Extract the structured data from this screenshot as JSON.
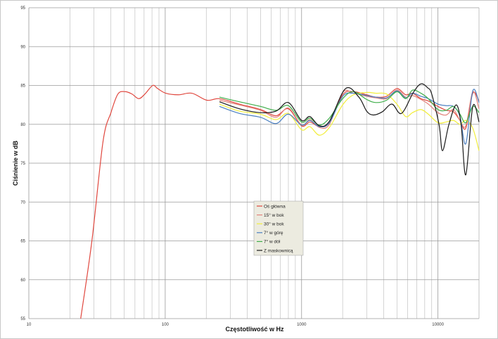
{
  "chart_data": {
    "type": "line",
    "title": "",
    "xlabel": "Częstotliwość w Hz",
    "ylabel": "Ciśnienie w dB",
    "xscale": "log",
    "xlim": [
      10,
      20000
    ],
    "ylim": [
      55,
      95
    ],
    "xticks": [
      10,
      100,
      1000,
      10000
    ],
    "xtick_labels": [
      "10",
      "100",
      "1000",
      "10000"
    ],
    "yticks": [
      55,
      60,
      65,
      70,
      75,
      80,
      85,
      90,
      95
    ],
    "ytick_labels": [
      "55",
      "60",
      "65",
      "70",
      "75",
      "80",
      "85",
      "90",
      "95"
    ],
    "grid": true,
    "legend_position": "center",
    "series": [
      {
        "name": "Oś główna",
        "color": "#e0473e",
        "x": [
          24,
          29,
          35,
          40,
          45,
          51,
          57,
          64,
          71,
          81,
          88,
          101,
          125,
          157,
          202,
          250,
          350,
          500,
          650,
          800,
          1000,
          1150,
          1350,
          1600,
          2000,
          2400,
          3000,
          3500,
          4200,
          5000,
          5800,
          6500,
          7500,
          8500,
          10000,
          11500,
          13000,
          14500,
          16000,
          18000,
          20000
        ],
        "y": [
          55,
          65,
          77.8,
          81.5,
          83.9,
          84.2,
          83.9,
          83.3,
          83.9,
          85.0,
          84.6,
          84.0,
          83.8,
          84.0,
          83.1,
          83.3,
          82.6,
          81.9,
          81.1,
          82.0,
          79.8,
          80.3,
          79.7,
          80.2,
          83.8,
          84.2,
          83.8,
          83.5,
          83.6,
          84.6,
          83.8,
          84.0,
          83.3,
          83.0,
          82.3,
          81.8,
          81.6,
          80.5,
          79.5,
          84.0,
          83.0
        ]
      },
      {
        "name": "15° w bok",
        "color": "#e3837c",
        "x": [
          250,
          350,
          500,
          650,
          800,
          1000,
          1150,
          1350,
          1600,
          2000,
          2400,
          3000,
          3500,
          4200,
          5000,
          5800,
          6500,
          7500,
          8500,
          10000,
          11500,
          13000,
          14500,
          16000,
          18000,
          20000
        ],
        "y": [
          83.1,
          82.5,
          81.8,
          80.9,
          82.1,
          79.9,
          80.6,
          79.6,
          80.0,
          84.1,
          84.0,
          83.6,
          83.4,
          83.3,
          84.4,
          83.5,
          83.7,
          83.2,
          82.6,
          81.5,
          81.2,
          81.9,
          80.5,
          79.8,
          84.2,
          82.0
        ]
      },
      {
        "name": "30° w bok",
        "color": "#f2ee3c",
        "x": [
          250,
          350,
          500,
          650,
          800,
          1000,
          1150,
          1350,
          1600,
          2000,
          2400,
          3000,
          3500,
          4200,
          5000,
          5800,
          6500,
          7500,
          8500,
          10000,
          11500,
          13000,
          14500,
          16000,
          18000,
          20000
        ],
        "y": [
          82.6,
          81.7,
          81.3,
          80.6,
          81.4,
          79.3,
          79.7,
          78.6,
          79.6,
          82.5,
          83.8,
          84.1,
          84.0,
          83.9,
          82.6,
          81.0,
          81.5,
          81.9,
          81.3,
          80.2,
          80.3,
          80.5,
          80.0,
          80.5,
          79.5,
          76.6
        ]
      },
      {
        "name": "7° w górę",
        "color": "#4a7fc1",
        "x": [
          250,
          350,
          500,
          650,
          800,
          1000,
          1150,
          1350,
          1600,
          2000,
          2400,
          3000,
          3500,
          4200,
          5000,
          5800,
          6500,
          7500,
          8500,
          10000,
          11500,
          13000,
          14500,
          16000,
          18000,
          20000
        ],
        "y": [
          82.3,
          81.4,
          80.9,
          80.1,
          81.3,
          79.9,
          80.5,
          79.7,
          80.2,
          83.6,
          84.0,
          83.7,
          83.5,
          83.4,
          84.3,
          83.4,
          84.0,
          83.6,
          83.3,
          82.6,
          82.4,
          82.3,
          81.0,
          77.5,
          84.3,
          82.8
        ]
      },
      {
        "name": "7° w dół",
        "color": "#3fae4a",
        "x": [
          250,
          350,
          500,
          650,
          800,
          1000,
          1150,
          1350,
          1600,
          2000,
          2400,
          3000,
          3500,
          4200,
          5000,
          5800,
          6500,
          7500,
          8500,
          10000,
          11500,
          13000,
          14500,
          16000,
          18000,
          20000
        ],
        "y": [
          83.5,
          82.9,
          82.3,
          81.8,
          82.4,
          80.3,
          80.8,
          79.9,
          80.8,
          83.3,
          84.2,
          83.2,
          82.8,
          83.1,
          84.2,
          83.3,
          84.4,
          84.0,
          83.3,
          81.9,
          81.8,
          82.3,
          81.3,
          80.2,
          82.3,
          81.5
        ]
      },
      {
        "name": "Z maskownicą",
        "color": "#1a1a1a",
        "x": [
          250,
          350,
          500,
          650,
          800,
          1000,
          1150,
          1350,
          1600,
          2100,
          2630,
          3000,
          3350,
          3900,
          4600,
          5400,
          6600,
          7500,
          8400,
          9000,
          10200,
          10800,
          12000,
          13600,
          14800,
          16000,
          18000,
          20000
        ],
        "y": [
          82.9,
          82.0,
          81.5,
          81.7,
          82.8,
          80.5,
          81.0,
          79.8,
          80.4,
          84.6,
          83.5,
          81.7,
          81.2,
          81.6,
          82.6,
          81.4,
          84.1,
          85.2,
          84.7,
          83.9,
          79.9,
          76.6,
          79.9,
          82.5,
          79.9,
          73.5,
          82.3,
          80.3
        ]
      }
    ]
  }
}
